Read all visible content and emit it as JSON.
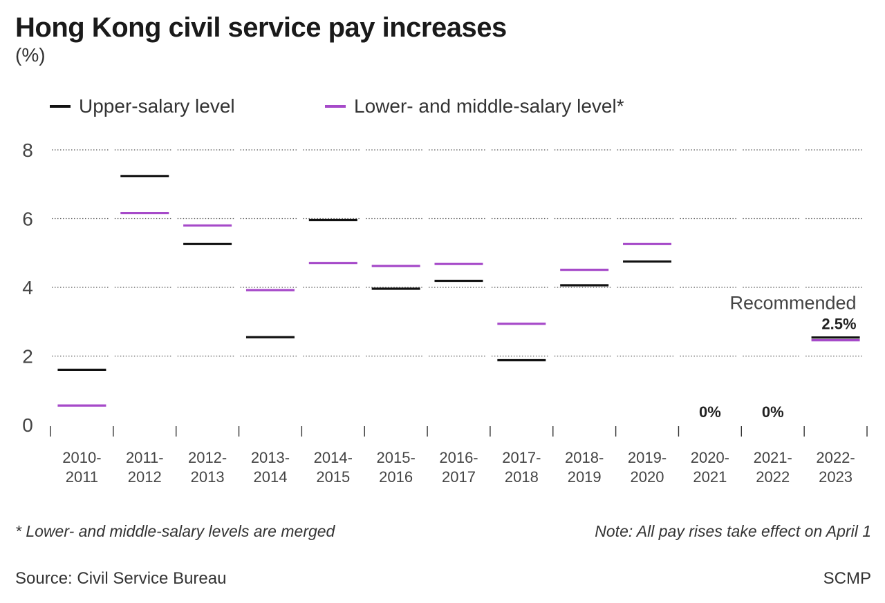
{
  "title": "Hong Kong civil service pay increases",
  "unit": "(%)",
  "legend": [
    {
      "label": "Upper-salary level",
      "color": "#111111"
    },
    {
      "label": "Lower- and middle-salary level*",
      "color": "#a64ac9"
    }
  ],
  "footnote": "* Lower- and middle-salary levels are merged",
  "note": "Note: All pay rises take effect on April 1",
  "source": "Source: Civil Service Bureau",
  "credit": "SCMP",
  "chart_data": {
    "type": "scatter",
    "categories": [
      "2010-2011",
      "2011-2012",
      "2012-2013",
      "2013-2014",
      "2014-2015",
      "2015-2016",
      "2016-2017",
      "2017-2018",
      "2018-2019",
      "2019-2020",
      "2020-2021",
      "2021-2022",
      "2022-2023"
    ],
    "series": [
      {
        "name": "Upper-salary level",
        "color": "#111111",
        "values": [
          1.6,
          7.24,
          5.26,
          2.55,
          5.96,
          3.96,
          4.19,
          1.88,
          4.06,
          4.75,
          0,
          0,
          2.5
        ]
      },
      {
        "name": "Lower- and middle-salary level*",
        "color": "#a64ac9",
        "values": [
          0.56,
          6.16,
          5.8,
          3.92,
          4.71,
          4.62,
          4.68,
          2.94,
          4.51,
          5.26,
          0,
          0,
          2.5
        ]
      }
    ],
    "ylim": [
      0,
      8
    ],
    "yticks": [
      0,
      2,
      4,
      6,
      8
    ],
    "grid": true,
    "annotations": [
      {
        "category": "2020-2021",
        "text": "0%"
      },
      {
        "category": "2021-2022",
        "text": "0%"
      },
      {
        "category": "2022-2023",
        "text": "2.5%",
        "label_above": "Recommended"
      }
    ]
  }
}
